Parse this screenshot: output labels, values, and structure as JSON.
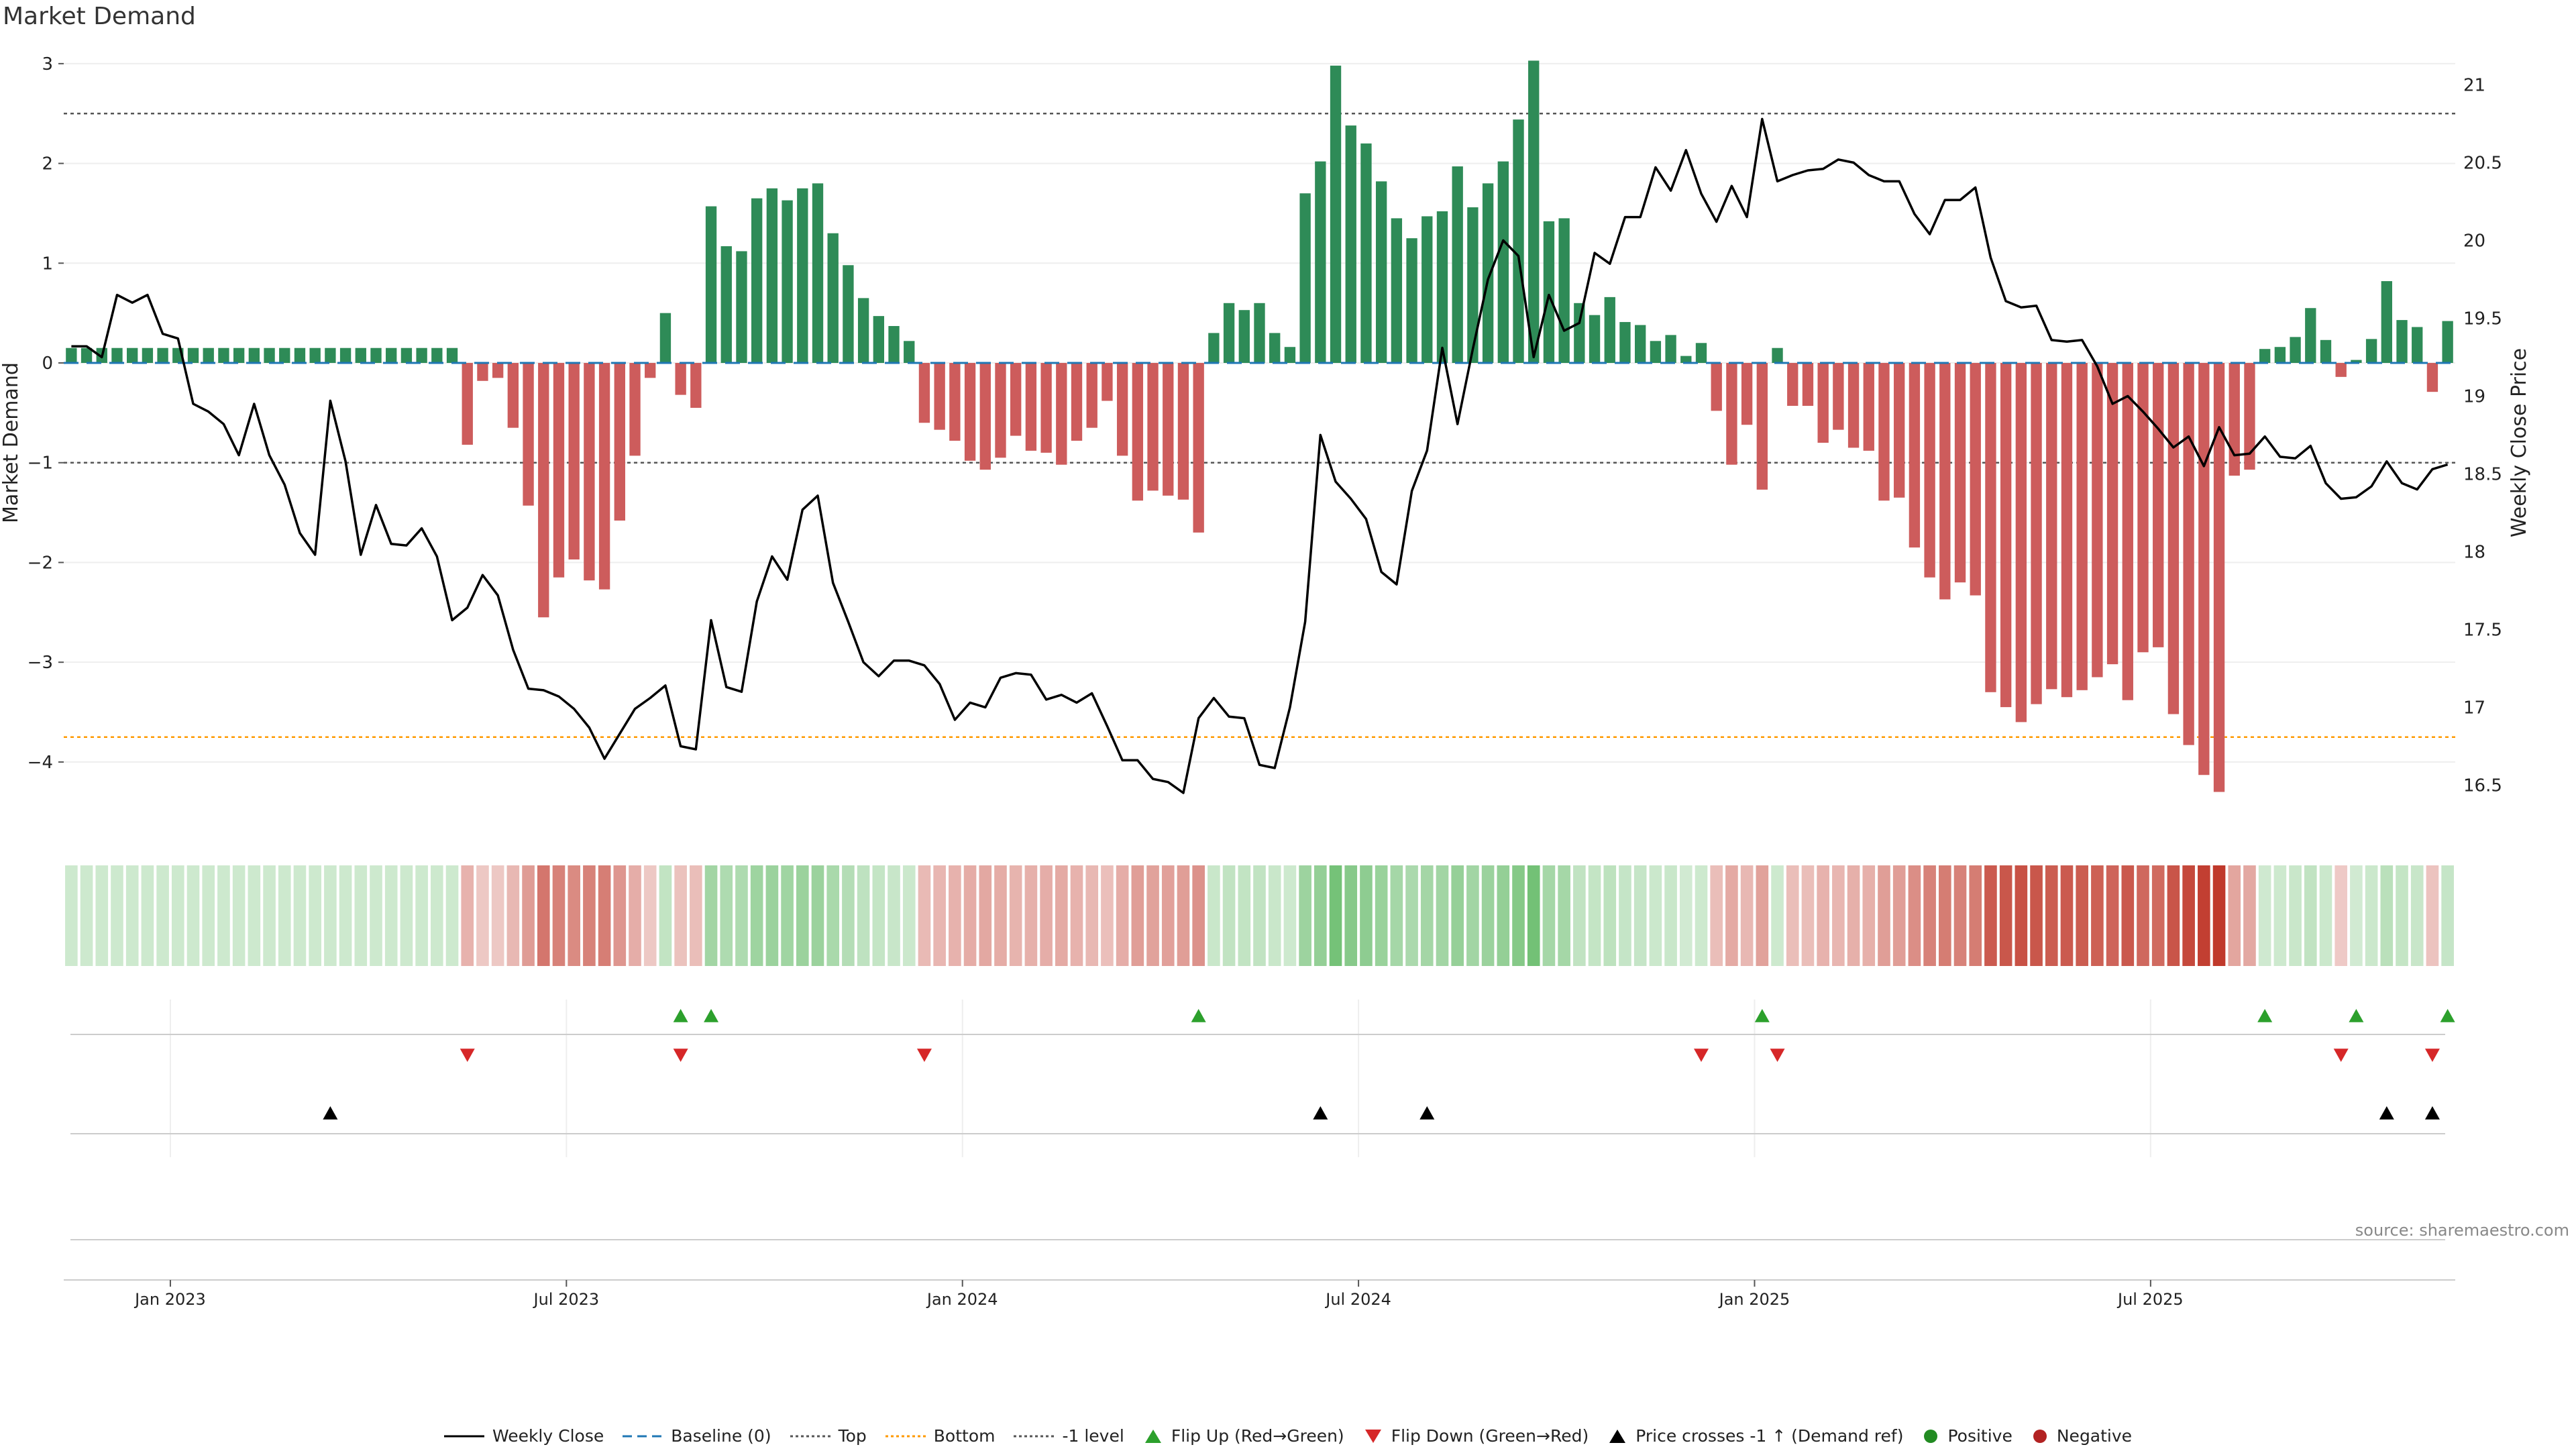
{
  "title": "Market Demand",
  "source": "source: sharemaestro.com",
  "colors": {
    "positive": "#2e8b57",
    "negative": "#cd5c5c",
    "price": "#000000",
    "baseline": "#1f77b4",
    "top": "#555555",
    "bottom": "#ff9900",
    "flip_up": "#2ca02c",
    "flip_down": "#d62728",
    "cross": "#000000",
    "pos_dot": "#228b22",
    "neg_dot": "#b22222"
  },
  "chart_data": {
    "type": "bar",
    "title": "Market Demand",
    "ylabel": "Market Demand",
    "y2label": "Weekly Close Price",
    "ylim": [
      -4.7,
      3.1
    ],
    "y2lim": [
      16.2,
      21.2
    ],
    "yticks": [
      3,
      2,
      1,
      0,
      -1,
      -2,
      -3,
      -4
    ],
    "ytick_labels": [
      "3",
      "2",
      "1",
      "0",
      "−1",
      "−2",
      "−3",
      "−4"
    ],
    "y2ticks": [
      21,
      20.5,
      20,
      19.5,
      19,
      18.5,
      18,
      17.5,
      17,
      16.5
    ],
    "y2tick_labels": [
      "21",
      "20.5",
      "20",
      "19.5",
      "19",
      "18.5",
      "18",
      "17.5",
      "17",
      "16.5"
    ],
    "xticks": [
      {
        "week": 7,
        "label": "Jan 2023"
      },
      {
        "week": 33,
        "label": "Jul 2023"
      },
      {
        "week": 59,
        "label": "Jan 2024"
      },
      {
        "week": 85,
        "label": "Jul 2024"
      },
      {
        "week": 111,
        "label": "Jan 2025"
      },
      {
        "week": 137,
        "label": "Jul 2025"
      }
    ],
    "lines": {
      "baseline": 0,
      "top": 2.5,
      "bottom": -3.75,
      "minus_one": -1
    },
    "demand": [
      0.15,
      0.15,
      0.15,
      0.15,
      0.15,
      0.15,
      0.15,
      0.15,
      0.15,
      0.15,
      0.15,
      0.15,
      0.15,
      0.15,
      0.15,
      0.15,
      0.15,
      0.15,
      0.15,
      0.15,
      0.15,
      0.15,
      0.15,
      0.15,
      0.15,
      0.15,
      -0.82,
      -0.18,
      -0.15,
      -0.65,
      -1.43,
      -2.55,
      -2.15,
      -1.97,
      -2.18,
      -2.27,
      -1.58,
      -0.93,
      -0.15,
      0.5,
      -0.32,
      -0.45,
      1.57,
      1.17,
      1.12,
      1.65,
      1.75,
      1.63,
      1.75,
      1.8,
      1.3,
      0.98,
      0.65,
      0.47,
      0.37,
      0.22,
      -0.6,
      -0.67,
      -0.78,
      -0.98,
      -1.07,
      -0.95,
      -0.73,
      -0.88,
      -0.9,
      -1.02,
      -0.78,
      -0.65,
      -0.38,
      -0.93,
      -1.38,
      -1.28,
      -1.33,
      -1.37,
      -1.7,
      0.3,
      0.6,
      0.53,
      0.6,
      0.3,
      0.16,
      1.7,
      2.02,
      2.98,
      2.38,
      2.2,
      1.82,
      1.45,
      1.25,
      1.47,
      1.52,
      1.97,
      1.56,
      1.8,
      2.02,
      2.44,
      3.03,
      1.42,
      1.45,
      0.6,
      0.48,
      0.66,
      0.41,
      0.38,
      0.22,
      0.28,
      0.07,
      0.2,
      -0.48,
      -1.02,
      -0.62,
      -1.27,
      0.15,
      -0.43,
      -0.43,
      -0.8,
      -0.67,
      -0.85,
      -0.88,
      -1.38,
      -1.35,
      -1.85,
      -2.15,
      -2.37,
      -2.2,
      -2.33,
      -3.3,
      -3.45,
      -3.6,
      -3.42,
      -3.27,
      -3.35,
      -3.28,
      -3.15,
      -3.02,
      -3.38,
      -2.9,
      -2.85,
      -3.52,
      -3.83,
      -4.13,
      -4.3,
      -1.13,
      -1.07,
      0.14,
      0.16,
      0.26,
      0.55,
      0.23,
      -0.14,
      0.03,
      0.24,
      0.82,
      0.43,
      0.36,
      -0.29,
      0.42
    ],
    "colorband": [
      0.15,
      0.15,
      0.15,
      0.15,
      0.15,
      0.15,
      0.15,
      0.15,
      0.15,
      0.15,
      0.15,
      0.15,
      0.15,
      0.15,
      0.15,
      0.15,
      0.15,
      0.15,
      0.15,
      0.15,
      0.15,
      0.15,
      0.15,
      0.15,
      0.15,
      0.15,
      -0.82,
      -0.18,
      -0.15,
      -0.65,
      -1.43,
      -2.55,
      -2.15,
      -1.97,
      -2.18,
      -2.27,
      -1.58,
      -0.93,
      -0.15,
      0.5,
      -0.32,
      -0.45,
      1.57,
      1.17,
      1.12,
      1.65,
      1.75,
      1.63,
      1.75,
      1.8,
      1.3,
      0.98,
      0.65,
      0.47,
      0.37,
      0.22,
      -0.6,
      -0.67,
      -0.78,
      -0.98,
      -1.07,
      -0.95,
      -0.73,
      -0.88,
      -0.9,
      -1.02,
      -0.78,
      -0.65,
      -0.38,
      -0.93,
      -1.38,
      -1.28,
      -1.33,
      -1.37,
      -1.7,
      0.3,
      0.6,
      0.53,
      0.6,
      0.3,
      0.16,
      1.7,
      2.02,
      2.98,
      2.38,
      2.2,
      1.82,
      1.45,
      1.25,
      1.47,
      1.52,
      1.97,
      1.56,
      1.8,
      2.02,
      2.44,
      3.03,
      1.42,
      1.45,
      0.6,
      0.48,
      0.66,
      0.41,
      0.38,
      0.22,
      0.28,
      0.07,
      0.2,
      -0.48,
      -1.02,
      -0.62,
      -1.27,
      0.15,
      -0.43,
      -0.43,
      -0.8,
      -0.67,
      -0.85,
      -0.88,
      -1.38,
      -1.35,
      -1.85,
      -2.15,
      -2.37,
      -2.2,
      -2.33,
      -3.3,
      -3.45,
      -3.6,
      -3.42,
      -3.27,
      -3.35,
      -3.28,
      -3.15,
      -3.02,
      -3.38,
      -2.9,
      -2.85,
      -3.52,
      -3.83,
      -4.13,
      -4.3,
      -1.13,
      -1.07,
      0.14,
      0.16,
      0.26,
      0.55,
      0.23,
      -0.14,
      0.03,
      0.24,
      0.82,
      0.43,
      0.36,
      -0.29,
      0.42
    ],
    "price": [
      19.32,
      19.32,
      19.25,
      19.65,
      19.6,
      19.65,
      19.4,
      19.37,
      18.95,
      18.9,
      18.82,
      18.62,
      18.95,
      18.62,
      18.43,
      18.12,
      17.98,
      18.97,
      18.58,
      17.98,
      18.3,
      18.05,
      18.04,
      18.15,
      17.97,
      17.56,
      17.64,
      17.85,
      17.72,
      17.37,
      17.12,
      17.11,
      17.07,
      16.99,
      16.87,
      16.67,
      16.83,
      16.99,
      17.06,
      17.14,
      16.75,
      16.73,
      17.56,
      17.13,
      17.1,
      17.68,
      17.97,
      17.82,
      18.27,
      18.36,
      17.8,
      17.55,
      17.29,
      17.2,
      17.3,
      17.3,
      17.27,
      17.15,
      16.92,
      17.03,
      17.0,
      17.19,
      17.22,
      17.21,
      17.05,
      17.08,
      17.03,
      17.09,
      16.88,
      16.66,
      16.66,
      16.54,
      16.52,
      16.45,
      16.93,
      17.06,
      16.94,
      16.93,
      16.63,
      16.61,
      17.0,
      17.55,
      18.75,
      18.45,
      18.34,
      18.21,
      17.87,
      17.79,
      18.39,
      18.65,
      19.31,
      18.82,
      19.3,
      19.75,
      20.0,
      19.9,
      19.25,
      19.65,
      19.42,
      19.47,
      19.92,
      19.85,
      20.15,
      20.15,
      20.47,
      20.32,
      20.58,
      20.3,
      20.12,
      20.35,
      20.15,
      20.78,
      20.38,
      20.42,
      20.45,
      20.46,
      20.52,
      20.5,
      20.42,
      20.38,
      20.38,
      20.17,
      20.04,
      20.26,
      20.26,
      20.34,
      19.89,
      19.61,
      19.57,
      19.58,
      19.36,
      19.35,
      19.36,
      19.19,
      18.95,
      19.0,
      18.9,
      18.79,
      18.67,
      18.74,
      18.55,
      18.8,
      18.62,
      18.63,
      18.74,
      18.61,
      18.6,
      18.68,
      18.44,
      18.34,
      18.35,
      18.42,
      18.58,
      18.44,
      18.4,
      18.53,
      18.56
    ]
  },
  "flip_up_weeks": [
    40,
    42,
    74,
    111,
    144,
    150,
    156
  ],
  "flip_down_weeks": [
    26,
    40,
    56,
    107,
    112,
    149,
    155
  ],
  "cross_weeks": [
    17,
    82,
    89,
    152,
    155
  ],
  "legend": [
    {
      "key": "price",
      "label": "Weekly Close"
    },
    {
      "key": "baseline",
      "label": "Baseline (0)"
    },
    {
      "key": "top",
      "label": "Top"
    },
    {
      "key": "bottom",
      "label": "Bottom"
    },
    {
      "key": "minus_one",
      "label": "-1 level"
    },
    {
      "key": "flip_up",
      "label": "Flip Up (Red→Green)"
    },
    {
      "key": "flip_down",
      "label": "Flip Down (Green→Red)"
    },
    {
      "key": "cross",
      "label": "Price crosses -1 ↑ (Demand ref)"
    },
    {
      "key": "pos_dot",
      "label": "Positive"
    },
    {
      "key": "neg_dot",
      "label": "Negative"
    }
  ]
}
